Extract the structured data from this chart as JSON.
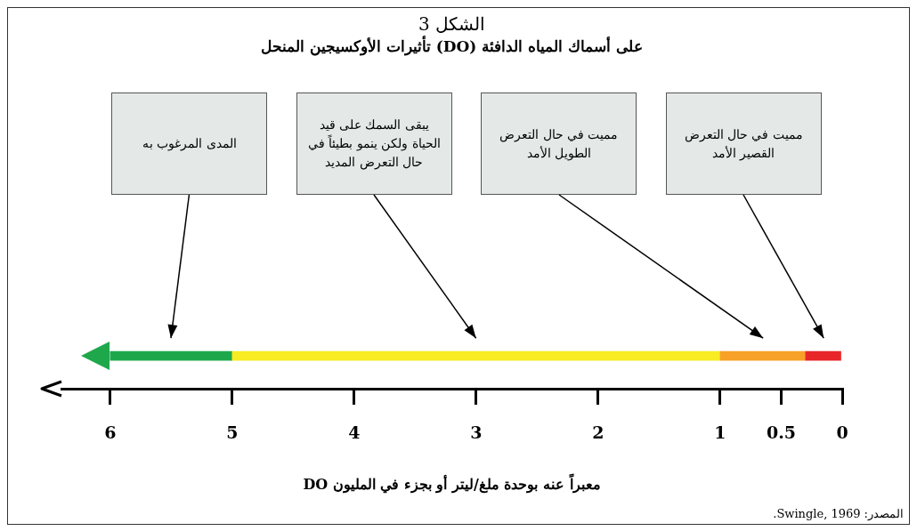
{
  "chart_data": {
    "type": "bar",
    "orientation": "horizontal",
    "stacked": true,
    "title": "الشكل 3",
    "subtitle": "تأثيرات الأوكسيجين المنحل (DO) على أسماك المياه الدافئة",
    "xlabel": "DO معبراً عنه بوحدة ملغ/ليتر أو بجزء في المليون",
    "categories": [
      null
    ],
    "series": [
      {
        "color": "#e8262a",
        "values": [
          0.3
        ]
      },
      {
        "color": "#f7a128",
        "values": [
          0.7
        ]
      },
      {
        "color": "#f8ec22",
        "values": [
          4
        ]
      },
      {
        "color": "#1ea84b",
        "values": [
          1
        ]
      }
    ],
    "xlim": [
      6.4,
      0
    ],
    "xticks": [
      0,
      0.5,
      1,
      2,
      3,
      4,
      5,
      6
    ],
    "annotations": [
      "مميت في حال التعرض القصير الأمد",
      "مميت في حال التعرض الطويل الأمد",
      "يبقى السمك على قيد الحياة ولكن ينمو بطيئاً في حال التعرض المديد",
      "المدى المرغوب به",
      "المصدر: Swingle, 1969."
    ]
  }
}
